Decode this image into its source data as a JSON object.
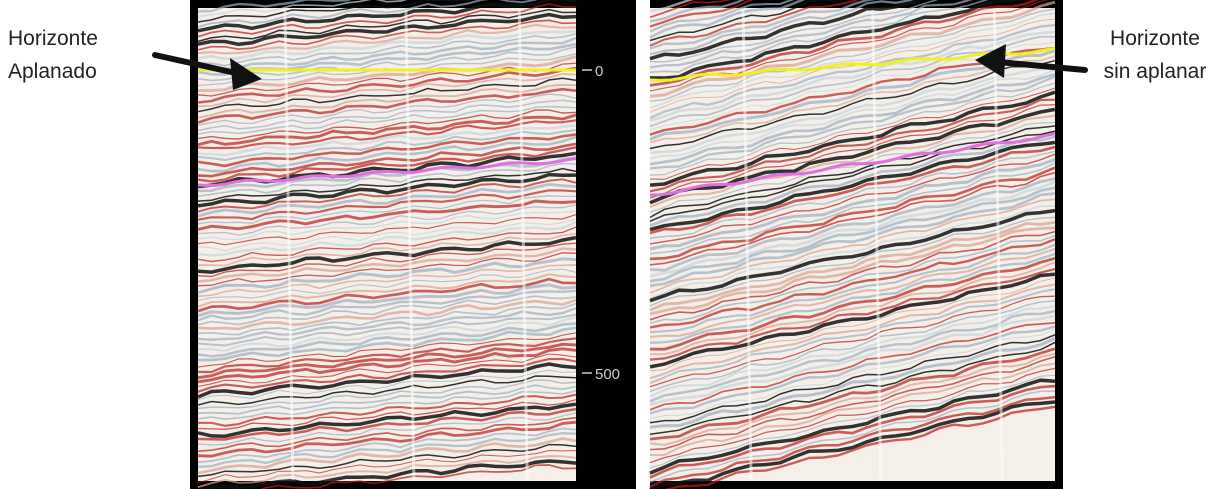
{
  "labels": {
    "left": {
      "line1": "Horizonte",
      "line2": "Aplanado"
    },
    "right": {
      "line1": "Horizonte",
      "line2": "sin aplanar"
    }
  },
  "scale": {
    "ticks": [
      "0",
      "500"
    ]
  },
  "colors": {
    "frame": "#000000",
    "background": "#f4efe8",
    "red_reflector": "#b8201c",
    "black_reflector": "#111111",
    "blue_reflector": "#9aaec0",
    "flattened_horizon": "#f0f020",
    "pink_horizon": "#e070e0",
    "scale_bar": "#000000",
    "scale_text": "#cccccc",
    "arrow": "#111111"
  }
}
